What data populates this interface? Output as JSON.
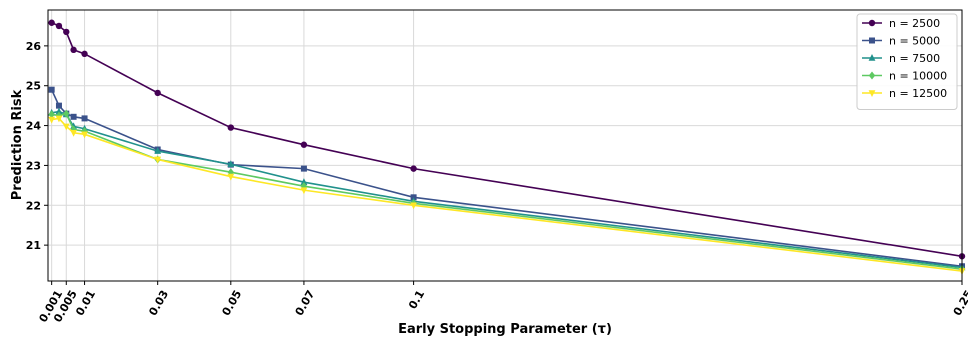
{
  "chart_data": {
    "type": "line",
    "title": "",
    "xlabel": "Early Stopping Parameter (τ)",
    "ylabel": "Prediction Risk",
    "xlim": [
      0.0,
      0.25
    ],
    "ylim": [
      20.1,
      26.9
    ],
    "x": [
      0.001,
      0.003,
      0.005,
      0.007,
      0.01,
      0.03,
      0.05,
      0.07,
      0.1,
      0.25
    ],
    "xticks": [
      0.001,
      0.005,
      0.01,
      0.03,
      0.05,
      0.07,
      0.1,
      0.25
    ],
    "xtick_labels": [
      "0.001",
      "0.005",
      "0.01",
      "0.03",
      "0.05",
      "0.07",
      "0.1",
      "0.25"
    ],
    "yticks": [
      21,
      22,
      23,
      24,
      25,
      26
    ],
    "ytick_labels": [
      "21",
      "22",
      "23",
      "24",
      "25",
      "26"
    ],
    "grid": true,
    "legend_position": "top-right",
    "series": [
      {
        "name": "n = 2500",
        "color": "#440154",
        "marker": "circle",
        "values": [
          26.58,
          26.5,
          26.35,
          25.9,
          25.8,
          24.82,
          23.95,
          23.52,
          22.92,
          20.72
        ]
      },
      {
        "name": "n = 5000",
        "color": "#3b528b",
        "marker": "square",
        "values": [
          24.9,
          24.5,
          24.3,
          24.22,
          24.18,
          23.4,
          23.02,
          22.92,
          22.2,
          20.47
        ]
      },
      {
        "name": "n = 7500",
        "color": "#21918c",
        "marker": "triangle-up",
        "values": [
          24.32,
          24.35,
          24.28,
          23.98,
          23.92,
          23.36,
          23.03,
          22.58,
          22.1,
          20.44
        ]
      },
      {
        "name": "n = 10000",
        "color": "#5ec962",
        "marker": "diamond",
        "values": [
          24.28,
          24.25,
          24.3,
          23.9,
          23.86,
          23.15,
          22.83,
          22.48,
          22.05,
          20.4
        ]
      },
      {
        "name": "n = 12500",
        "color": "#fde725",
        "marker": "triangle-down",
        "values": [
          24.15,
          24.18,
          23.98,
          23.82,
          23.78,
          23.15,
          22.72,
          22.38,
          22.0,
          20.35
        ]
      }
    ]
  }
}
